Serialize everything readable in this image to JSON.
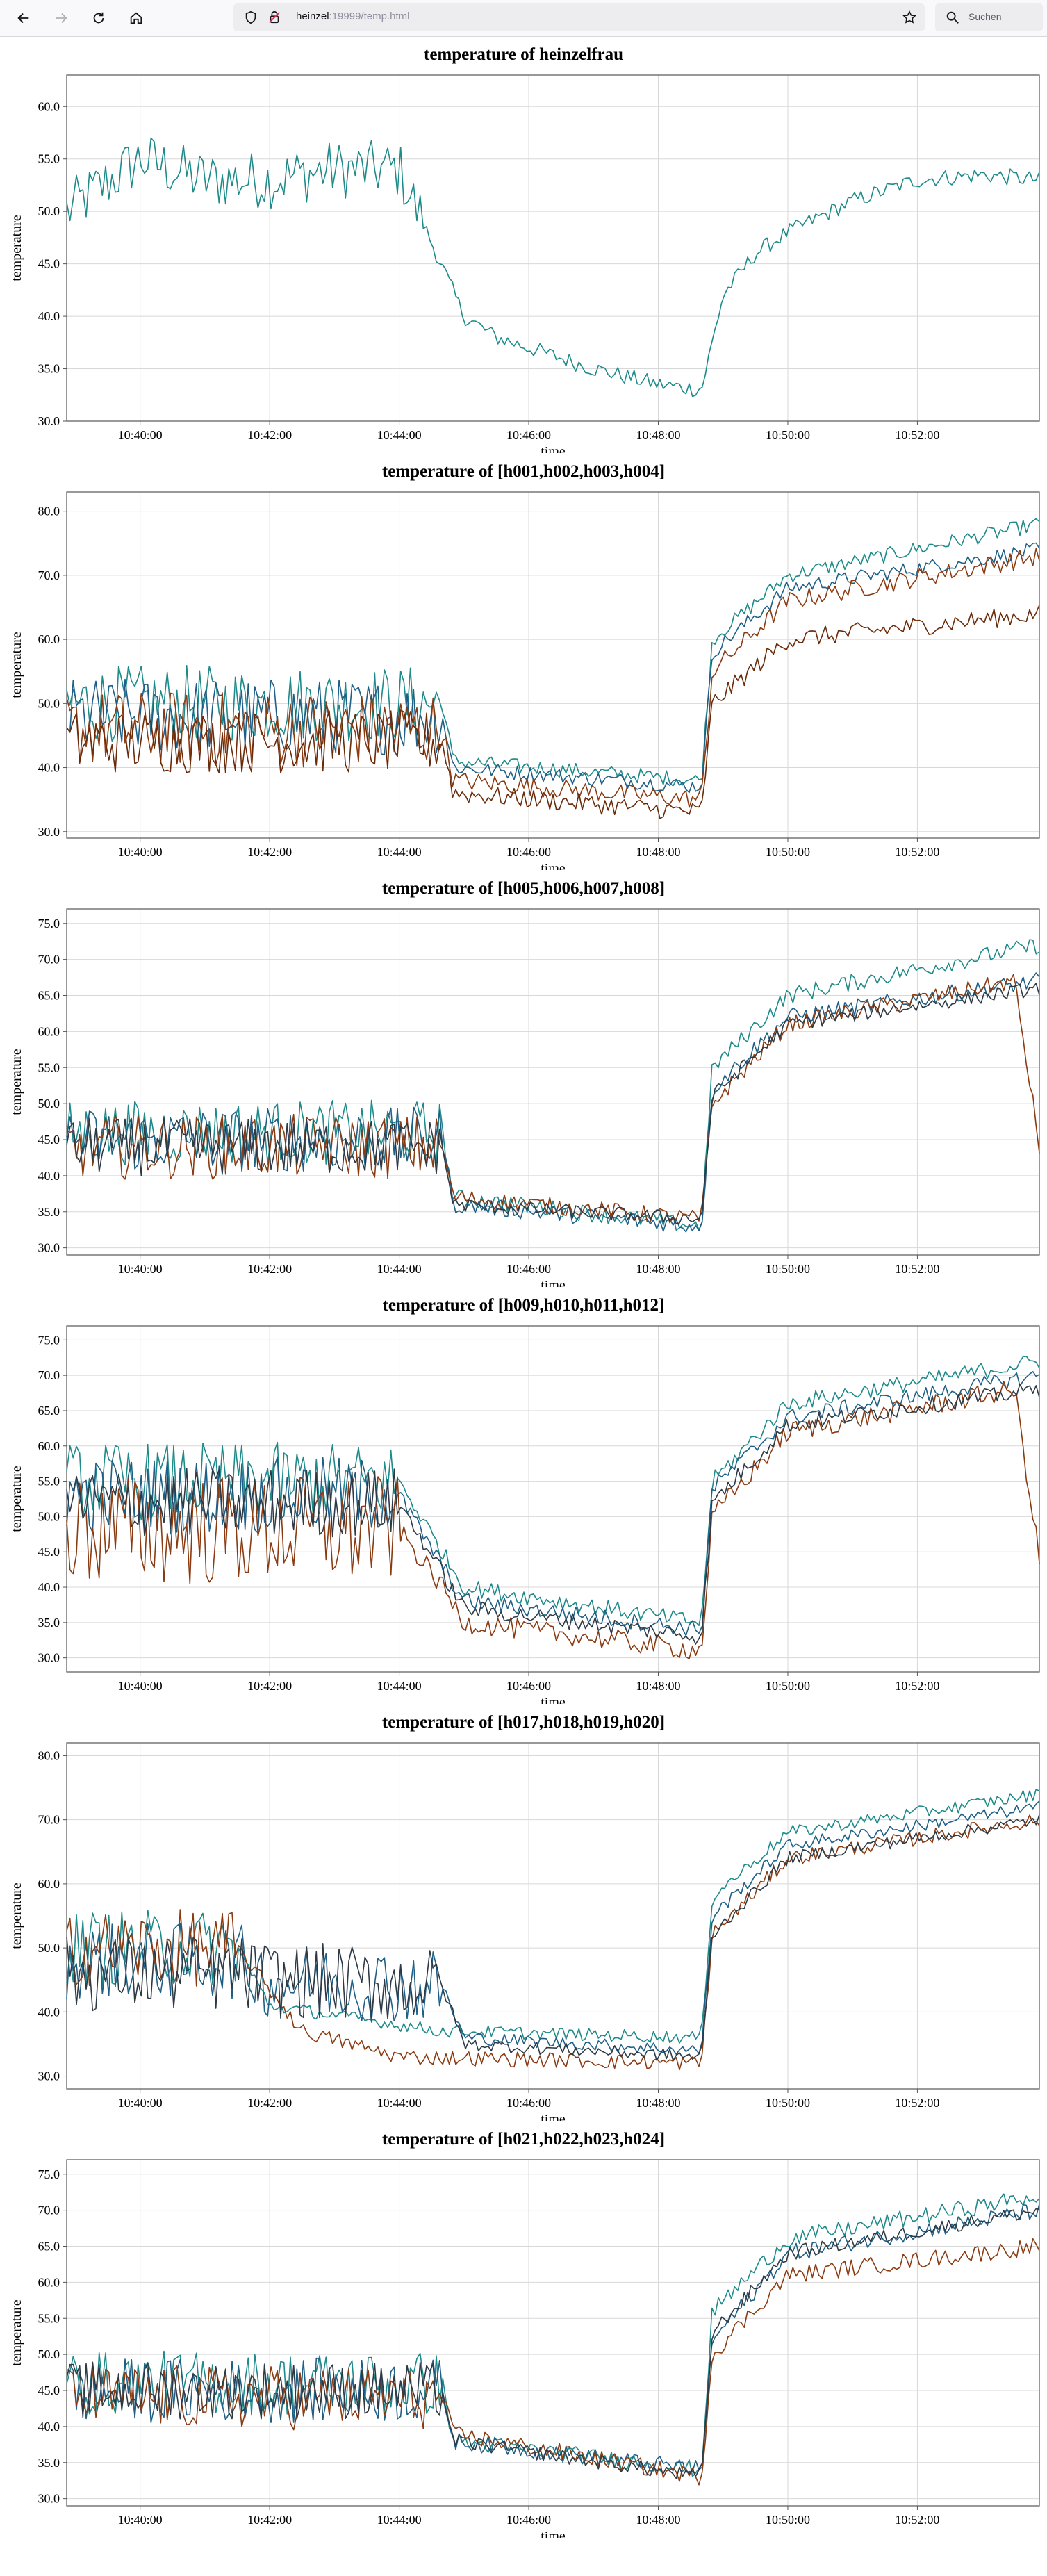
{
  "browser": {
    "url_host": "heinzel",
    "url_rest": ":19999/temp.html",
    "search_placeholder": "Suchen"
  },
  "colors": {
    "teal": "#1f8a8a",
    "blue": "#1f5f86",
    "brown": "#8a3b12",
    "dark": "#2d3a45"
  },
  "chart_data": [
    {
      "type": "line",
      "title": "temperature of heinzelfrau",
      "xlabel": "time",
      "ylabel": "temperature",
      "x_ticks": [
        "10:40:00",
        "10:42:00",
        "10:44:00",
        "10:46:00",
        "10:48:00",
        "10:50:00",
        "10:52:00"
      ],
      "y_ticks": [
        "30.0",
        "35.0",
        "40.0",
        "45.0",
        "50.0",
        "55.0",
        "60.0"
      ],
      "ylim": [
        30,
        63
      ],
      "xrange": [
        "10:38:52",
        "10:53:53"
      ],
      "grid": true,
      "series": [
        {
          "color": "#1f8a8a",
          "x": [
            "10:38:52",
            "10:40:00",
            "10:41:00",
            "10:42:00",
            "10:43:00",
            "10:44:00",
            "10:44:30",
            "10:45:00",
            "10:45:30",
            "10:46:00",
            "10:47:00",
            "10:48:00",
            "10:48:40",
            "10:49:00",
            "10:49:30",
            "10:50:00",
            "10:51:00",
            "10:52:00",
            "10:53:00",
            "10:53:53"
          ],
          "values": [
            50,
            55,
            53,
            53,
            54,
            54,
            47,
            40,
            38,
            37,
            35,
            33.5,
            33,
            42,
            46,
            48,
            51,
            53,
            53.5,
            53
          ],
          "noise": 2.8,
          "noise_until": "10:44:20",
          "noise_after": 0.8
        }
      ]
    },
    {
      "type": "line",
      "title": "temperature of [h001,h002,h003,h004]",
      "xlabel": "time",
      "ylabel": "temperature",
      "x_ticks": [
        "10:40:00",
        "10:42:00",
        "10:44:00",
        "10:46:00",
        "10:48:00",
        "10:50:00",
        "10:52:00"
      ],
      "y_ticks": [
        "30.0",
        "40.0",
        "50.0",
        "60.0",
        "70.0",
        "80.0"
      ],
      "ylim": [
        29,
        83
      ],
      "xrange": [
        "10:38:52",
        "10:53:53"
      ],
      "grid": true,
      "series": [
        {
          "color": "#1f8a8a",
          "x": [
            "10:38:52",
            "10:44:40",
            "10:44:50",
            "10:48:40",
            "10:48:50",
            "10:50:00",
            "10:53:53"
          ],
          "values": [
            50,
            50,
            41,
            38,
            60,
            70,
            78
          ],
          "noise": 6,
          "noise_until": "10:44:40",
          "noise_after": 1.2
        },
        {
          "color": "#1f5f86",
          "x": [
            "10:38:52",
            "10:44:40",
            "10:44:50",
            "10:48:40",
            "10:48:50",
            "10:50:00",
            "10:53:53"
          ],
          "values": [
            48,
            48,
            40,
            37,
            58,
            68,
            74
          ],
          "noise": 6,
          "noise_until": "10:44:40",
          "noise_after": 1.2
        },
        {
          "color": "#8a3b12",
          "x": [
            "10:38:52",
            "10:44:40",
            "10:44:50",
            "10:48:40",
            "10:48:50",
            "10:50:00",
            "10:53:53"
          ],
          "values": [
            46,
            46,
            38,
            35,
            55,
            66,
            73
          ],
          "noise": 6,
          "noise_until": "10:44:40",
          "noise_after": 1.5
        },
        {
          "color": "#6b2a08",
          "x": [
            "10:38:52",
            "10:44:40",
            "10:44:50",
            "10:48:40",
            "10:48:50",
            "10:50:00",
            "10:53:53"
          ],
          "values": [
            44,
            44,
            36,
            33,
            50,
            60,
            64
          ],
          "noise": 5,
          "noise_until": "10:44:40",
          "noise_after": 1.5
        }
      ]
    },
    {
      "type": "line",
      "title": "temperature of [h005,h006,h007,h008]",
      "xlabel": "time",
      "ylabel": "temperature",
      "x_ticks": [
        "10:40:00",
        "10:42:00",
        "10:44:00",
        "10:46:00",
        "10:48:00",
        "10:50:00",
        "10:52:00"
      ],
      "y_ticks": [
        "30.0",
        "35.0",
        "40.0",
        "45.0",
        "50.0",
        "55.0",
        "60.0",
        "65.0",
        "70.0",
        "75.0"
      ],
      "ylim": [
        29,
        77
      ],
      "xrange": [
        "10:38:52",
        "10:53:53"
      ],
      "grid": true,
      "series": [
        {
          "color": "#1f8a8a",
          "x": [
            "10:38:52",
            "10:44:40",
            "10:44:50",
            "10:48:40",
            "10:48:50",
            "10:50:00",
            "10:53:53"
          ],
          "values": [
            46,
            46,
            37,
            33,
            55,
            65,
            72
          ],
          "noise": 4.5,
          "noise_until": "10:44:40",
          "noise_after": 1.2
        },
        {
          "color": "#1f5f86",
          "x": [
            "10:38:52",
            "10:44:40",
            "10:44:50",
            "10:48:40",
            "10:48:50",
            "10:50:00",
            "10:53:53"
          ],
          "values": [
            45,
            45,
            36,
            33,
            52,
            62,
            67
          ],
          "noise": 4.5,
          "noise_until": "10:44:40",
          "noise_after": 1.2
        },
        {
          "color": "#8a3b12",
          "x": [
            "10:38:52",
            "10:44:40",
            "10:44:50",
            "10:48:40",
            "10:48:50",
            "10:50:00",
            "10:53:30",
            "10:53:53"
          ],
          "values": [
            44,
            44,
            37,
            34,
            50,
            61,
            67,
            44
          ],
          "noise": 4.5,
          "noise_until": "10:44:40",
          "noise_after": 1.2
        },
        {
          "color": "#2d3a45",
          "x": [
            "10:38:52",
            "10:44:40",
            "10:44:50",
            "10:48:40",
            "10:48:50",
            "10:50:00",
            "10:53:53"
          ],
          "values": [
            44,
            44,
            36,
            34,
            51,
            61,
            66
          ],
          "noise": 4,
          "noise_until": "10:44:40",
          "noise_after": 1
        }
      ]
    },
    {
      "type": "line",
      "title": "temperature of [h009,h010,h011,h012]",
      "xlabel": "time",
      "ylabel": "temperature",
      "x_ticks": [
        "10:40:00",
        "10:42:00",
        "10:44:00",
        "10:46:00",
        "10:48:00",
        "10:50:00",
        "10:52:00"
      ],
      "y_ticks": [
        "30.0",
        "35.0",
        "40.0",
        "45.0",
        "50.0",
        "55.0",
        "60.0",
        "65.0",
        "70.0",
        "75.0"
      ],
      "ylim": [
        28,
        77
      ],
      "xrange": [
        "10:38:52",
        "10:53:53"
      ],
      "grid": true,
      "series": [
        {
          "color": "#1f8a8a",
          "x": [
            "10:38:52",
            "10:44:00",
            "10:44:40",
            "10:45:00",
            "10:48:40",
            "10:48:50",
            "10:50:00",
            "10:53:53"
          ],
          "values": [
            55,
            55,
            45,
            40,
            35,
            55,
            66,
            72
          ],
          "noise": 5.5,
          "noise_until": "10:44:00",
          "noise_after": 1.2
        },
        {
          "color": "#1f5f86",
          "x": [
            "10:38:52",
            "10:44:00",
            "10:44:40",
            "10:45:00",
            "10:48:40",
            "10:48:50",
            "10:50:00",
            "10:53:53"
          ],
          "values": [
            53,
            53,
            43,
            38,
            34,
            54,
            64,
            70
          ],
          "noise": 5.5,
          "noise_until": "10:44:00",
          "noise_after": 1.2
        },
        {
          "color": "#8a3b12",
          "x": [
            "10:38:52",
            "10:44:00",
            "10:44:40",
            "10:45:00",
            "10:48:40",
            "10:48:50",
            "10:50:00",
            "10:53:30",
            "10:53:53"
          ],
          "values": [
            48,
            48,
            40,
            35,
            31,
            50,
            62,
            68,
            44
          ],
          "noise": 8,
          "noise_until": "10:44:00",
          "noise_after": 1.5
        },
        {
          "color": "#2d3a45",
          "x": [
            "10:38:52",
            "10:44:00",
            "10:44:40",
            "10:45:00",
            "10:48:40",
            "10:48:50",
            "10:50:00",
            "10:53:53"
          ],
          "values": [
            52,
            52,
            42,
            37,
            33,
            52,
            63,
            68
          ],
          "noise": 5,
          "noise_until": "10:44:00",
          "noise_after": 1.2
        }
      ]
    },
    {
      "type": "line",
      "title": "temperature of [h017,h018,h019,h020]",
      "xlabel": "time",
      "ylabel": "temperature",
      "x_ticks": [
        "10:40:00",
        "10:42:00",
        "10:44:00",
        "10:46:00",
        "10:48:00",
        "10:50:00",
        "10:52:00"
      ],
      "y_ticks": [
        "30.0",
        "40.0",
        "50.0",
        "60.0",
        "70.0",
        "80.0"
      ],
      "ylim": [
        28,
        82
      ],
      "xrange": [
        "10:38:52",
        "10:53:53"
      ],
      "grid": true,
      "series": [
        {
          "color": "#1f8a8a",
          "x": [
            "10:38:52",
            "10:41:30",
            "10:42:00",
            "10:44:40",
            "10:45:00",
            "10:48:40",
            "10:48:50",
            "10:50:00",
            "10:53:53"
          ],
          "values": [
            50,
            50,
            41,
            37,
            37,
            36,
            58,
            68,
            74
          ],
          "noise": 6,
          "noise_until": "10:41:30",
          "noise_after": 1.0
        },
        {
          "color": "#1f5f86",
          "x": [
            "10:38:52",
            "10:41:30",
            "10:42:00",
            "10:44:40",
            "10:45:00",
            "10:48:40",
            "10:48:50",
            "10:50:00",
            "10:53:53"
          ],
          "values": [
            48,
            48,
            45,
            44,
            36,
            34,
            55,
            66,
            72
          ],
          "noise": 6,
          "noise_until": "10:44:40",
          "noise_after": 1.0
        },
        {
          "color": "#8a3b12",
          "x": [
            "10:38:52",
            "10:41:30",
            "10:42:30",
            "10:44:00",
            "10:48:40",
            "10:48:50",
            "10:50:00",
            "10:53:53"
          ],
          "values": [
            50,
            50,
            37,
            33,
            32,
            52,
            64,
            70
          ],
          "noise": 6,
          "noise_until": "10:41:30",
          "noise_after": 1.2
        },
        {
          "color": "#2d3a45",
          "x": [
            "10:38:52",
            "10:41:30",
            "10:42:00",
            "10:44:40",
            "10:45:00",
            "10:48:40",
            "10:48:50",
            "10:50:00",
            "10:53:53"
          ],
          "values": [
            46,
            46,
            45,
            44,
            35,
            33,
            52,
            64,
            70
          ],
          "noise": 6,
          "noise_until": "10:44:40",
          "noise_after": 1.0
        }
      ]
    },
    {
      "type": "line",
      "title": "temperature of [h021,h022,h023,h024]",
      "xlabel": "time",
      "ylabel": "temperature",
      "x_ticks": [
        "10:40:00",
        "10:42:00",
        "10:44:00",
        "10:46:00",
        "10:48:00",
        "10:50:00",
        "10:52:00"
      ],
      "y_ticks": [
        "30.0",
        "35.0",
        "40.0",
        "45.0",
        "50.0",
        "55.0",
        "60.0",
        "65.0",
        "70.0",
        "75.0"
      ],
      "ylim": [
        29,
        77
      ],
      "xrange": [
        "10:38:52",
        "10:53:53"
      ],
      "grid": true,
      "series": [
        {
          "color": "#1f8a8a",
          "x": [
            "10:38:52",
            "10:44:40",
            "10:44:50",
            "10:48:40",
            "10:48:50",
            "10:50:00",
            "10:53:53"
          ],
          "values": [
            46,
            46,
            38,
            34,
            56,
            66,
            72
          ],
          "noise": 4.5,
          "noise_until": "10:44:40",
          "noise_after": 1.2
        },
        {
          "color": "#1f5f86",
          "x": [
            "10:38:52",
            "10:44:40",
            "10:44:50",
            "10:48:40",
            "10:48:50",
            "10:50:00",
            "10:53:53"
          ],
          "values": [
            45,
            45,
            38,
            34,
            52,
            64,
            70
          ],
          "noise": 4.5,
          "noise_until": "10:44:40",
          "noise_after": 1.2
        },
        {
          "color": "#8a3b12",
          "x": [
            "10:38:52",
            "10:44:40",
            "10:44:50",
            "10:48:40",
            "10:48:50",
            "10:50:00",
            "10:53:53"
          ],
          "values": [
            44,
            44,
            39,
            33,
            50,
            61,
            65
          ],
          "noise": 4.5,
          "noise_until": "10:44:40",
          "noise_after": 1.2
        },
        {
          "color": "#2d3a45",
          "x": [
            "10:38:52",
            "10:44:40",
            "10:44:50",
            "10:48:40",
            "10:48:50",
            "10:50:00",
            "10:53:53"
          ],
          "values": [
            45,
            45,
            38,
            33,
            53,
            64,
            70
          ],
          "noise": 4,
          "noise_until": "10:44:40",
          "noise_after": 1
        }
      ]
    }
  ]
}
